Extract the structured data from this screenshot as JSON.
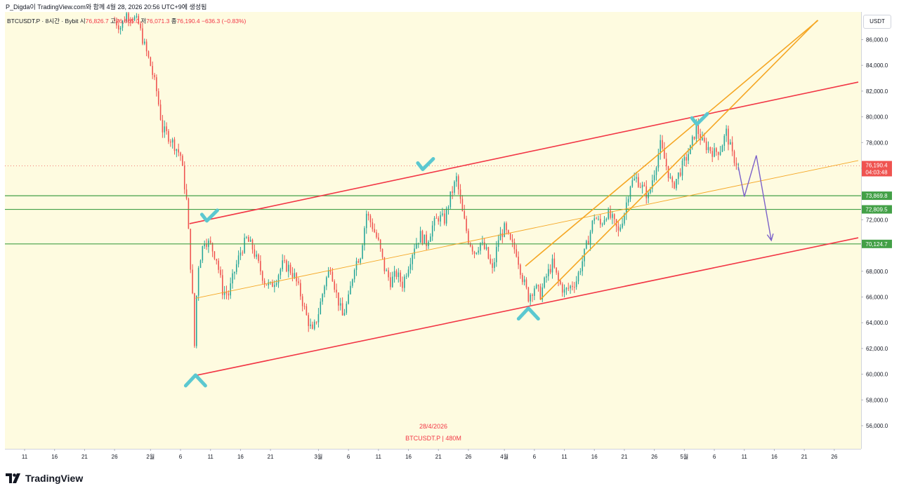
{
  "attribution": "P_Digda이 TradingView.com와 함께 4월 28, 2026 20:56 UTC+9에 생성됨",
  "legend": {
    "symbol": "BTCUSDT.P · 8시간 · Bybit",
    "open_label": "시",
    "open": "76,826.7",
    "high_label": "고",
    "high": "76,865.0",
    "low_label": "저",
    "low": "76,071.3",
    "close_label": "종",
    "close": "76,190.4",
    "change": "−636.3 (−0.83%)"
  },
  "currency": "USDT",
  "brand": "TradingView",
  "watermark": {
    "date": "28/4/2026",
    "symbol": "BTCUSDT.P | 480M"
  },
  "colors": {
    "up": "#26a69a",
    "down": "#ef5350",
    "channel": "#f23645",
    "orange": "#f5a623",
    "green": "#43a047",
    "marker": "#5bc8d0",
    "arrow": "#7b61c9",
    "background": "#fefbe0"
  },
  "chart_data": {
    "type": "candlestick",
    "title": "BTCUSDT.P 8H Bybit",
    "y_axis": {
      "min": 54500,
      "max": 88000,
      "ticks": [
        56000,
        58000,
        60000,
        62000,
        64000,
        66000,
        68000,
        70000,
        72000,
        74000,
        76000,
        78000,
        80000,
        82000,
        84000,
        86000
      ],
      "tick_labels": [
        "56,000.0",
        "58,000.0",
        "60,000.0",
        "62,000.0",
        "64,000.0",
        "66,000.0",
        "68,000.0",
        "70,000.0",
        "72,000.0",
        "74,000.0",
        "76,000.0",
        "78,000.0",
        "80,000.0",
        "82,000.0",
        "84,000.0",
        "86,000.0"
      ]
    },
    "x_axis": {
      "start_day": 0,
      "end_day": 139,
      "ticks": [
        {
          "day": 0,
          "label": "11"
        },
        {
          "day": 5,
          "label": "16"
        },
        {
          "day": 10,
          "label": "21"
        },
        {
          "day": 15,
          "label": "26"
        },
        {
          "day": 21,
          "label": "2월"
        },
        {
          "day": 26,
          "label": "6"
        },
        {
          "day": 31,
          "label": "11"
        },
        {
          "day": 36,
          "label": "16"
        },
        {
          "day": 41,
          "label": "21"
        },
        {
          "day": 49,
          "label": "3월"
        },
        {
          "day": 54,
          "label": "6"
        },
        {
          "day": 59,
          "label": "11"
        },
        {
          "day": 64,
          "label": "16"
        },
        {
          "day": 69,
          "label": "21"
        },
        {
          "day": 74,
          "label": "26"
        },
        {
          "day": 80,
          "label": "4월"
        },
        {
          "day": 85,
          "label": "6"
        },
        {
          "day": 90,
          "label": "11"
        },
        {
          "day": 95,
          "label": "16"
        },
        {
          "day": 100,
          "label": "21"
        },
        {
          "day": 105,
          "label": "26"
        },
        {
          "day": 110,
          "label": "5월"
        },
        {
          "day": 115,
          "label": "6"
        },
        {
          "day": 120,
          "label": "11"
        },
        {
          "day": 125,
          "label": "16"
        },
        {
          "day": 130,
          "label": "21"
        },
        {
          "day": 135,
          "label": "26"
        }
      ]
    },
    "price_path": [
      {
        "day": 15,
        "price": 87500
      },
      {
        "day": 16,
        "price": 87000
      },
      {
        "day": 17,
        "price": 88000
      },
      {
        "day": 18,
        "price": 87800
      },
      {
        "day": 19,
        "price": 87200
      },
      {
        "day": 20,
        "price": 85500
      },
      {
        "day": 21,
        "price": 84000
      },
      {
        "day": 22,
        "price": 82000
      },
      {
        "day": 23,
        "price": 79000
      },
      {
        "day": 24,
        "price": 78500
      },
      {
        "day": 25,
        "price": 77800
      },
      {
        "day": 26,
        "price": 77000
      },
      {
        "day": 27,
        "price": 73500
      },
      {
        "day": 28,
        "price": 66000
      },
      {
        "day": 28.3,
        "price": 61800
      },
      {
        "day": 28.7,
        "price": 66500
      },
      {
        "day": 29,
        "price": 68500
      },
      {
        "day": 30,
        "price": 70500
      },
      {
        "day": 31,
        "price": 70000
      },
      {
        "day": 32,
        "price": 69000
      },
      {
        "day": 33,
        "price": 66500
      },
      {
        "day": 34,
        "price": 66200
      },
      {
        "day": 35,
        "price": 68000
      },
      {
        "day": 36,
        "price": 69500
      },
      {
        "day": 37,
        "price": 70500
      },
      {
        "day": 38,
        "price": 69800
      },
      {
        "day": 39,
        "price": 68500
      },
      {
        "day": 40,
        "price": 67200
      },
      {
        "day": 41,
        "price": 66800
      },
      {
        "day": 42,
        "price": 67500
      },
      {
        "day": 43,
        "price": 68500
      },
      {
        "day": 44,
        "price": 68300
      },
      {
        "day": 45,
        "price": 67600
      },
      {
        "day": 46,
        "price": 66200
      },
      {
        "day": 47,
        "price": 64500
      },
      {
        "day": 48,
        "price": 63200
      },
      {
        "day": 49,
        "price": 64800
      },
      {
        "day": 50,
        "price": 67000
      },
      {
        "day": 51,
        "price": 68400
      },
      {
        "day": 52,
        "price": 66200
      },
      {
        "day": 53,
        "price": 64500
      },
      {
        "day": 54,
        "price": 65800
      },
      {
        "day": 55,
        "price": 68500
      },
      {
        "day": 56,
        "price": 69300
      },
      {
        "day": 57,
        "price": 72500
      },
      {
        "day": 58,
        "price": 71500
      },
      {
        "day": 59,
        "price": 70200
      },
      {
        "day": 60,
        "price": 68200
      },
      {
        "day": 61,
        "price": 67200
      },
      {
        "day": 62,
        "price": 67800
      },
      {
        "day": 63,
        "price": 67000
      },
      {
        "day": 64,
        "price": 68500
      },
      {
        "day": 65,
        "price": 70000
      },
      {
        "day": 66,
        "price": 70800
      },
      {
        "day": 67,
        "price": 70200
      },
      {
        "day": 68,
        "price": 71500
      },
      {
        "day": 69,
        "price": 72200
      },
      {
        "day": 70,
        "price": 72000
      },
      {
        "day": 71,
        "price": 73800
      },
      {
        "day": 72,
        "price": 75200
      },
      {
        "day": 73,
        "price": 72500
      },
      {
        "day": 74,
        "price": 70500
      },
      {
        "day": 75,
        "price": 69500
      },
      {
        "day": 76,
        "price": 70200
      },
      {
        "day": 77,
        "price": 69500
      },
      {
        "day": 78,
        "price": 68000
      },
      {
        "day": 79,
        "price": 70500
      },
      {
        "day": 80,
        "price": 71300
      },
      {
        "day": 81,
        "price": 70200
      },
      {
        "day": 82,
        "price": 69500
      },
      {
        "day": 83,
        "price": 67500
      },
      {
        "day": 84,
        "price": 66000
      },
      {
        "day": 85,
        "price": 66800
      },
      {
        "day": 86,
        "price": 66200
      },
      {
        "day": 87,
        "price": 67600
      },
      {
        "day": 88,
        "price": 68600
      },
      {
        "day": 89,
        "price": 67200
      },
      {
        "day": 90,
        "price": 66400
      },
      {
        "day": 91,
        "price": 66800
      },
      {
        "day": 92,
        "price": 67300
      },
      {
        "day": 93,
        "price": 68800
      },
      {
        "day": 94,
        "price": 70500
      },
      {
        "day": 95,
        "price": 72300
      },
      {
        "day": 96,
        "price": 71600
      },
      {
        "day": 97,
        "price": 72500
      },
      {
        "day": 98,
        "price": 72000
      },
      {
        "day": 99,
        "price": 71000
      },
      {
        "day": 100,
        "price": 72600
      },
      {
        "day": 101,
        "price": 74800
      },
      {
        "day": 102,
        "price": 75200
      },
      {
        "day": 103,
        "price": 74500
      },
      {
        "day": 104,
        "price": 73800
      },
      {
        "day": 105,
        "price": 75800
      },
      {
        "day": 106,
        "price": 77800
      },
      {
        "day": 107,
        "price": 76200
      },
      {
        "day": 108,
        "price": 74500
      },
      {
        "day": 109,
        "price": 75500
      },
      {
        "day": 110,
        "price": 76500
      },
      {
        "day": 111,
        "price": 77500
      },
      {
        "day": 112,
        "price": 79200
      },
      {
        "day": 113,
        "price": 78000
      },
      {
        "day": 114,
        "price": 77600
      },
      {
        "day": 115,
        "price": 77200
      },
      {
        "day": 116,
        "price": 77500
      },
      {
        "day": 117,
        "price": 78800
      },
      {
        "day": 118,
        "price": 77000
      },
      {
        "day": 119,
        "price": 76190
      }
    ],
    "price_lines": [
      {
        "price": 73869.8,
        "label": "73,869.8",
        "color": "#43a047"
      },
      {
        "price": 72809.5,
        "label": "72,809.5",
        "color": "#43a047"
      },
      {
        "price": 70124.7,
        "label": "70,124.7",
        "color": "#43a047"
      }
    ],
    "last_price": {
      "price": 76190.4,
      "label": "76,190.4",
      "countdown": "04:03:48"
    },
    "trendlines": [
      {
        "name": "channel-upper",
        "color": "#f23645",
        "from": {
          "day": 27.5,
          "price": 71700
        },
        "to": {
          "day": 139,
          "price": 82700
        }
      },
      {
        "name": "channel-lower",
        "color": "#f23645",
        "from": {
          "day": 28.5,
          "price": 59900
        },
        "to": {
          "day": 139,
          "price": 70600
        }
      },
      {
        "name": "orange-midline",
        "color": "#f5a623",
        "from": {
          "day": 28.5,
          "price": 65900
        },
        "to": {
          "day": 139,
          "price": 76600
        }
      },
      {
        "name": "rising-channel-upper",
        "color": "#f5a623",
        "from": {
          "day": 83.5,
          "price": 68400
        },
        "to": {
          "day": 132.3,
          "price": 87500
        }
      },
      {
        "name": "rising-channel-lower",
        "color": "#f5a623",
        "from": {
          "day": 86,
          "price": 65800
        },
        "to": {
          "day": 132.2,
          "price": 87500
        }
      }
    ],
    "forecast_path": [
      {
        "day": 119,
        "price": 76100
      },
      {
        "day": 120,
        "price": 73800
      },
      {
        "day": 122,
        "price": 77000
      },
      {
        "day": 124.5,
        "price": 70400
      }
    ],
    "pivot_markers": [
      {
        "day": 28.5,
        "price": 59600,
        "direction": "low"
      },
      {
        "day": 30.5,
        "price": 72300,
        "direction": "high"
      },
      {
        "day": 66.5,
        "price": 76300,
        "direction": "high"
      },
      {
        "day": 84,
        "price": 64800,
        "direction": "low"
      },
      {
        "day": 112.2,
        "price": 79800,
        "direction": "high"
      }
    ]
  }
}
